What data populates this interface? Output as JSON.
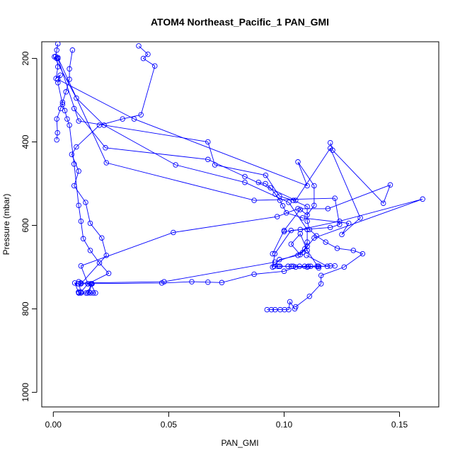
{
  "chart_data": {
    "type": "line",
    "title": "ATOM4 Northeast_Pacific_1 PAN_GMI",
    "xlabel": "PAN_GMI",
    "ylabel": "Pressure (mbar)",
    "xlim": [
      -0.005,
      0.167
    ],
    "ylim": [
      1035,
      160
    ],
    "y_reversed": true,
    "grid": false,
    "x_ticks": [
      {
        "value": 0.0,
        "label": "0.00"
      },
      {
        "value": 0.05,
        "label": "0.05"
      },
      {
        "value": 0.1,
        "label": "0.10"
      },
      {
        "value": 0.15,
        "label": "0.15"
      }
    ],
    "y_ticks": [
      {
        "value": 200,
        "label": "200"
      },
      {
        "value": 400,
        "label": "400"
      },
      {
        "value": 600,
        "label": "600"
      },
      {
        "value": 800,
        "label": "800"
      },
      {
        "value": 1000,
        "label": "1000"
      }
    ],
    "series_color": "#0000ff",
    "marker": "open-circle",
    "series": [
      {
        "x": [
          0.002,
          0.0015,
          0.001,
          0.0015,
          0.002,
          0.0012,
          0.003,
          0.002,
          0.004,
          0.005,
          0.006,
          0.007,
          0.009,
          0.011,
          0.012,
          0.013,
          0.016,
          0.02,
          0.024,
          0.015,
          0.012,
          0.011
        ],
        "y": [
          165,
          180,
          195,
          200,
          220,
          248,
          240,
          258,
          310,
          325,
          345,
          360,
          453,
          552,
          590,
          632,
          660,
          690,
          715,
          740,
          760,
          762
        ]
      },
      {
        "x": [
          0.037,
          0.041,
          0.039,
          0.044,
          0.038,
          0.03,
          0.02,
          0.01,
          0.008,
          0.011,
          0.009,
          0.014,
          0.016,
          0.021,
          0.023,
          0.012
        ],
        "y": [
          170,
          190,
          200,
          218,
          335,
          345,
          360,
          412,
          430,
          470,
          505,
          545,
          595,
          630,
          672,
          740
        ]
      },
      {
        "x": [
          0.002,
          0.011,
          0.067,
          0.07,
          0.092,
          0.098,
          0.104,
          0.11,
          0.11,
          0.111,
          0.114,
          0.118,
          0.123,
          0.13,
          0.134,
          0.126,
          0.116,
          0.116,
          0.111,
          0.105
        ],
        "y": [
          200,
          350,
          400,
          455,
          480,
          530,
          540,
          555,
          590,
          610,
          625,
          640,
          655,
          660,
          668,
          700,
          720,
          740,
          770,
          795
        ]
      },
      {
        "x": [
          0.009,
          0.0226,
          0.067,
          0.083,
          0.105,
          0.12,
          0.133,
          0.125,
          0.128,
          0.108,
          0.101,
          0.0994,
          0.0982,
          0.0962,
          0.0941,
          0.0919,
          0.0889
        ],
        "y": [
          320,
          414,
          442,
          483,
          540,
          415,
          582,
          622,
          595,
          582,
          570,
          553,
          540,
          525,
          510,
          500,
          497
        ]
      },
      {
        "x": [
          0.0005,
          0.01,
          0.022,
          0.053,
          0.083,
          0.102,
          0.11,
          0.11,
          0.107,
          0.103,
          0.107,
          0.11,
          0.115
        ],
        "y": [
          196,
          295,
          360,
          455,
          497,
          545,
          610,
          650,
          670,
          645,
          620,
          660,
          702
        ]
      },
      {
        "x": [
          0.002,
          0.023,
          0.087,
          0.122,
          0.124,
          0.12,
          0.103,
          0.096,
          0.095,
          0.098,
          0.106,
          0.109,
          0.11
        ],
        "y": [
          198,
          450,
          540,
          535,
          598,
          605,
          612,
          668,
          700,
          682,
          672,
          656,
          640
        ]
      },
      {
        "x": [
          0.002,
          0.035,
          0.11,
          0.106,
          0.113,
          0.113,
          0.11,
          0.107,
          0.1,
          0.095
        ],
        "y": [
          250,
          345,
          505,
          448,
          505,
          552,
          575,
          562,
          612,
          668
        ]
      },
      {
        "x": [
          0.015,
          0.012,
          0.052,
          0.097,
          0.106,
          0.119,
          0.146,
          0.143,
          0.121,
          0.12
        ],
        "y": [
          740,
          697,
          617,
          579,
          560,
          560,
          503,
          547,
          420,
          402
        ]
      },
      {
        "x": [
          0.0107,
          0.0093,
          0.0109,
          0.012,
          0.011
        ],
        "y": [
          740,
          738,
          760,
          762,
          735
        ]
      },
      {
        "x": [
          0.011,
          0.047,
          0.06,
          0.067,
          0.073,
          0.087,
          0.1,
          0.105,
          0.11,
          0.12,
          0.122,
          0.115,
          0.104,
          0.098
        ],
        "y": [
          740,
          738,
          735,
          736,
          737,
          717,
          710,
          700,
          700,
          697,
          697,
          698,
          698,
          698
        ]
      },
      {
        "x": [
          0.012,
          0.048,
          0.096,
          0.108,
          0.113,
          0.16,
          0.124,
          0.107,
          0.1
        ],
        "y": [
          738,
          735,
          688,
          665,
          630,
          537,
          590,
          610,
          615
        ]
      },
      {
        "x": [
          0.0926,
          0.0945,
          0.0961,
          0.0983,
          0.1002,
          0.102,
          0.1025,
          0.1046
        ],
        "y": [
          802,
          802,
          802,
          802,
          802,
          802,
          783,
          800
        ]
      },
      {
        "x": [
          0.0957,
          0.0973,
          0.0982,
          0.1017,
          0.1031,
          0.1067,
          0.1089,
          0.1105,
          0.1115,
          0.1143,
          0.1148,
          0.1187,
          0.1097
        ],
        "y": [
          698,
          698,
          698,
          698,
          698,
          698,
          698,
          698,
          698,
          698,
          698,
          698,
          672
        ]
      },
      {
        "x": [
          0.0111,
          0.0142,
          0.0161,
          0.0173,
          0.0183,
          0.0162,
          0.0168,
          0.0155,
          0.0149,
          0.0165
        ],
        "y": [
          762,
          762,
          762,
          762,
          762,
          740,
          740,
          760,
          762,
          740
        ]
      },
      {
        "x": [
          0.0083,
          0.007,
          0.007,
          0.0055,
          0.004,
          0.0032,
          0.0015,
          0.0018,
          0.0015
        ],
        "y": [
          180,
          225,
          250,
          280,
          305,
          320,
          345,
          378,
          395
        ]
      }
    ]
  }
}
